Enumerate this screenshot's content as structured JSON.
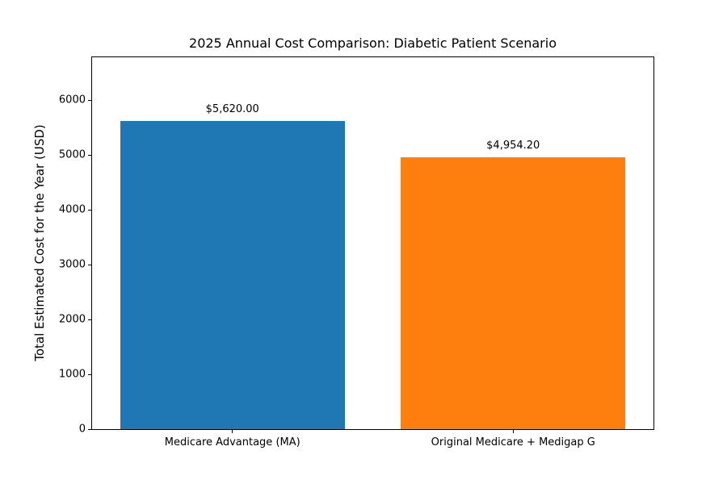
{
  "chart_data": {
    "type": "bar",
    "title": "2025 Annual Cost Comparison: Diabetic Patient Scenario",
    "xlabel": "",
    "ylabel": "Total Estimated Cost for the Year (USD)",
    "categories": [
      "Medicare Advantage (MA)",
      "Original Medicare + Medigap G"
    ],
    "values": [
      5620.0,
      4954.2
    ],
    "value_labels": [
      "$5,620.00",
      "$4,954.20"
    ],
    "bar_colors": [
      "#1f77b4",
      "#ff7f0e"
    ],
    "yticks": [
      0,
      1000,
      2000,
      3000,
      4000,
      5000,
      6000
    ],
    "ylim": [
      0,
      6780
    ],
    "bar_width_fraction": 0.8,
    "grid": false,
    "legend": "none",
    "background_color": "#ffffff",
    "text_color": "#000000"
  }
}
